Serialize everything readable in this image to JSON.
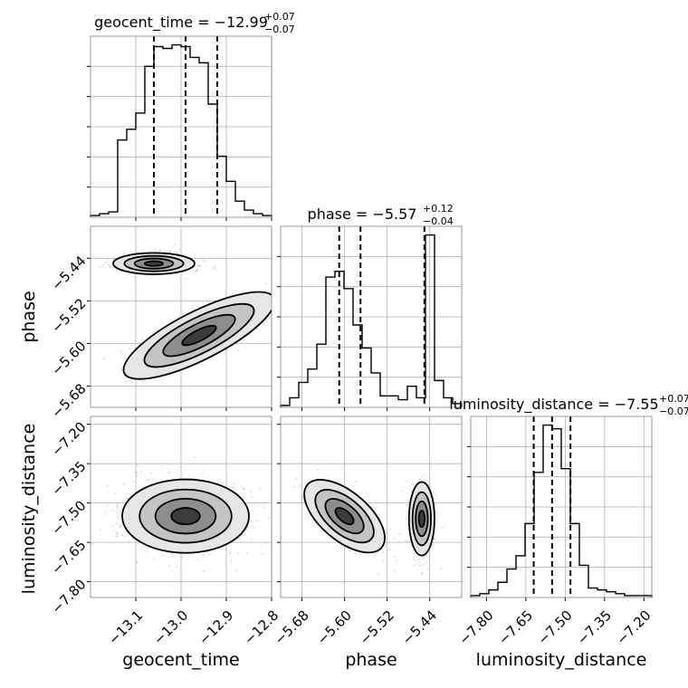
{
  "chart_data": {
    "type": "corner",
    "parameters": [
      "geocent_time",
      "phase",
      "luminosity_distance"
    ],
    "titles": [
      {
        "name": "geocent_time",
        "median": "−12.99",
        "plus": "+0.07",
        "minus": "−0.07"
      },
      {
        "name": "phase",
        "median": "−5.57",
        "plus": "+0.12",
        "minus": "−0.04"
      },
      {
        "name": "luminosity_distance",
        "median": "−7.55",
        "plus": "+0.07",
        "minus": "−0.07"
      }
    ],
    "axes": {
      "geocent_time": {
        "range": [
          -13.2,
          -12.8
        ],
        "ticks": [
          -13.1,
          -13.0,
          -12.9,
          -12.8
        ],
        "tick_labels": [
          "−13.1",
          "−13.0",
          "−12.9",
          "−12.8"
        ]
      },
      "phase": {
        "range": [
          -5.72,
          -5.38
        ],
        "ticks": [
          -5.68,
          -5.6,
          -5.52,
          -5.44
        ],
        "tick_labels": [
          "−5.68",
          "−5.60",
          "−5.52",
          "−5.44"
        ]
      },
      "luminosity_distance": {
        "range": [
          -7.86,
          -7.17
        ],
        "ticks": [
          -7.8,
          -7.65,
          -7.5,
          -7.35,
          -7.2
        ],
        "tick_labels": [
          "−7.80",
          "−7.65",
          "−7.50",
          "−7.35",
          "−7.20"
        ]
      }
    },
    "histograms": {
      "geocent_time": {
        "edges": [
          -13.2,
          -13.18,
          -13.16,
          -13.14,
          -13.12,
          -13.1,
          -13.08,
          -13.06,
          -13.04,
          -13.02,
          -13.0,
          -12.98,
          -12.96,
          -12.94,
          -12.92,
          -12.9,
          -12.88,
          -12.86,
          -12.84,
          -12.82,
          -12.8
        ],
        "counts": [
          1,
          2,
          3,
          43,
          49,
          58,
          84,
          95,
          94,
          96,
          95,
          89,
          86,
          63,
          34,
          20,
          9,
          4,
          2,
          1
        ],
        "quantiles": [
          -13.06,
          -12.99,
          -12.92
        ]
      },
      "phase": {
        "edges": [
          -5.72,
          -5.703,
          -5.686,
          -5.669,
          -5.652,
          -5.635,
          -5.618,
          -5.601,
          -5.584,
          -5.567,
          -5.55,
          -5.533,
          -5.516,
          -5.499,
          -5.482,
          -5.465,
          -5.448,
          -5.431,
          -5.414,
          -5.397,
          -5.38
        ],
        "counts": [
          1,
          5,
          13,
          20,
          33,
          68,
          71,
          62,
          43,
          31,
          18,
          6,
          6,
          4,
          11,
          5,
          90,
          14,
          5,
          2
        ],
        "quantiles": [
          -5.61,
          -5.57,
          -5.45
        ]
      },
      "luminosity_distance": {
        "edges": [
          -7.86,
          -7.8255,
          -7.791,
          -7.7565,
          -7.722,
          -7.6875,
          -7.653,
          -7.6185,
          -7.584,
          -7.5495,
          -7.515,
          -7.4805,
          -7.446,
          -7.4115,
          -7.377,
          -7.3425,
          -7.308,
          -7.2735,
          -7.239,
          -7.2045,
          -7.17
        ],
        "counts": [
          1,
          2,
          4,
          8,
          15,
          22,
          39,
          66,
          91,
          89,
          68,
          39,
          17,
          5,
          4,
          3,
          2,
          1,
          1,
          1
        ],
        "quantiles": [
          -7.62,
          -7.55,
          -7.48
        ]
      }
    },
    "grid": true
  }
}
